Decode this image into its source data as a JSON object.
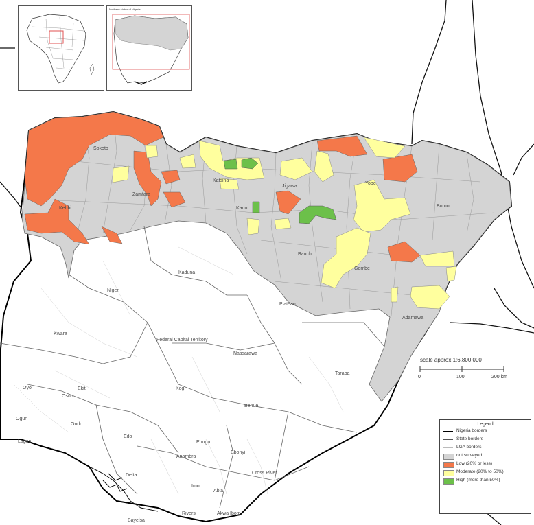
{
  "inset_northern": {
    "title": "Northern states of Nigeria"
  },
  "states": {
    "sokoto": "Sokoto",
    "zamfara": "Zamfara",
    "katsina": "Katsina",
    "jigawa": "Jigawa",
    "yobe": "Yobe",
    "borno": "Borno",
    "kebbi": "Kebbi",
    "kano": "Kano",
    "bauchi": "Bauchi",
    "gombe": "Gombe",
    "adamawa": "Adamawa",
    "niger": "Niger",
    "kaduna": "Kaduna",
    "plateau": "Plateau",
    "kwara": "Kwara",
    "fct": "Federal Capital Territory",
    "nassarawa": "Nassarawa",
    "taraba": "Taraba",
    "oyo": "Oyo",
    "ekiti": "Ekiti",
    "osun": "Osun",
    "kogi": "Kogi",
    "ogun": "Ogun",
    "ondo": "Ondo",
    "edo": "Edo",
    "benue": "Benue",
    "lagos": "Lagos",
    "enugu": "Enugu",
    "ebonyi": "Ebonyi",
    "anambra": "Anambra",
    "delta": "Delta",
    "cross_river": "Cross River",
    "imo": "Imo",
    "abia": "Abia",
    "rivers": "Rivers",
    "akwa_ibom": "Akwa Ibom",
    "bayelsa": "Bayelsa"
  },
  "scale": {
    "title": "scale approx 1:6,800,000",
    "ticks": [
      "0",
      "100",
      "200 km"
    ]
  },
  "legend": {
    "title": "Legend",
    "items": [
      {
        "label": "Nigeria borders",
        "kind": "line-thick",
        "color": "#000000"
      },
      {
        "label": "State borders",
        "kind": "line",
        "color": "#555555"
      },
      {
        "label": "LGA borders",
        "kind": "line-thin",
        "color": "#bbbbbb"
      },
      {
        "label": "not surveyed",
        "kind": "fill",
        "color": "#d4d4d4"
      },
      {
        "label": "Low (20% or less)",
        "kind": "fill",
        "color": "#f4784a"
      },
      {
        "label": "Moderate (20% to 50%)",
        "kind": "fill",
        "color": "#ffff9e"
      },
      {
        "label": "High (more than 50%)",
        "kind": "fill",
        "color": "#6cc04a"
      }
    ]
  },
  "colors": {
    "not_surveyed": "#d4d4d4",
    "low": "#f4784a",
    "moderate": "#ffff9e",
    "high": "#6cc04a",
    "inset_highlight": "#e05050"
  }
}
